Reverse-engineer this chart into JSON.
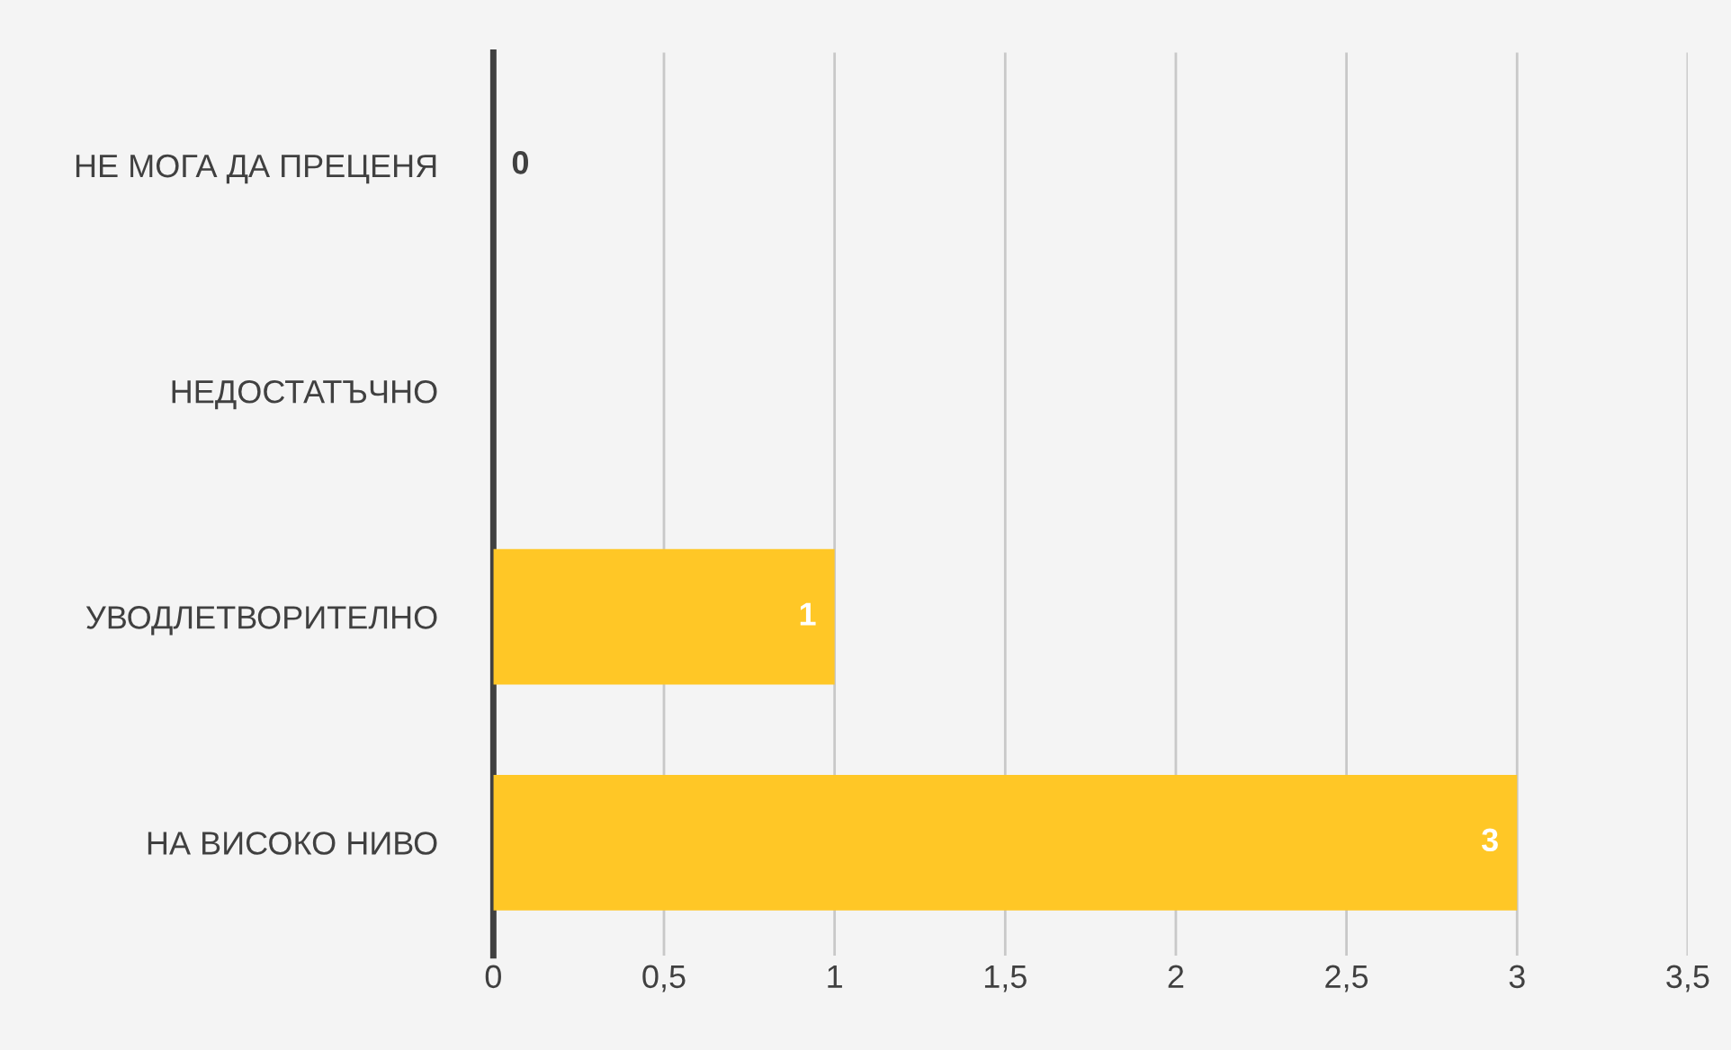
{
  "chart_data": {
    "type": "bar",
    "orientation": "horizontal",
    "categories": [
      "НЕ МОГА ДА ПРЕЦЕНЯ",
      "НЕДОСТАТЪЧНО",
      "УВОДЛЕТВОРИТЕЛНО",
      "НА ВИСОКО НИВО"
    ],
    "values": [
      0,
      null,
      1,
      3
    ],
    "value_labels": [
      "0",
      null,
      "1",
      "3"
    ],
    "color": "#ffc726",
    "xlim": [
      0,
      3.5
    ],
    "xticks": [
      0,
      {
        "value": 0.5,
        "label": "0,5"
      },
      1,
      {
        "value": 1.5,
        "label": "1,5"
      },
      2,
      {
        "value": 2.5,
        "label": "2,5"
      },
      3,
      {
        "value": 3.5,
        "label": "3,5"
      }
    ],
    "grid": "x"
  }
}
